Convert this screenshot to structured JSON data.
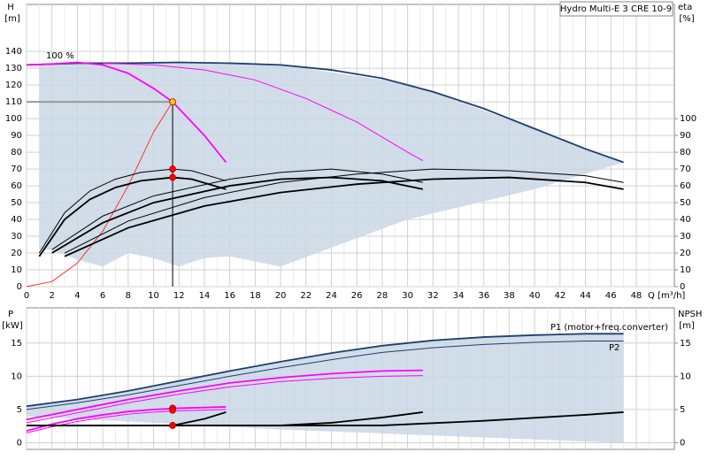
{
  "chart_data": [
    {
      "type": "line",
      "title": "Hydro Multi-E 3 CRE 10-9",
      "ylabel": "H",
      "yunit": "[m]",
      "y2label": "eta",
      "y2unit": "[%]",
      "xlabel": "Q [m³/h]",
      "annotation": "100 %",
      "xlim": [
        0,
        51
      ],
      "ylim": [
        0,
        168
      ],
      "y2lim": [
        0,
        168
      ],
      "xticks": [
        0,
        2,
        4,
        6,
        8,
        10,
        12,
        14,
        16,
        18,
        20,
        22,
        24,
        26,
        28,
        30,
        32,
        34,
        36,
        38,
        40,
        42,
        44,
        46,
        48
      ],
      "yticks": [
        0,
        10,
        20,
        30,
        40,
        50,
        60,
        70,
        80,
        90,
        100,
        110,
        120,
        130,
        140
      ],
      "y2ticks": [
        0,
        10,
        20,
        30,
        40,
        50,
        60,
        70,
        80,
        90,
        100
      ],
      "grid": true,
      "region": {
        "color": "#c9d7e4",
        "x": [
          1,
          2,
          4,
          6,
          8,
          10,
          12,
          14,
          16,
          20,
          30,
          40,
          47
        ],
        "upper": [
          132,
          132.5,
          133,
          133,
          133,
          133,
          133.5,
          133.5,
          133,
          132,
          121,
          94,
          74
        ],
        "lower": [
          22,
          22,
          16,
          12,
          20,
          17,
          12,
          17,
          18,
          12,
          40,
          58,
          74
        ]
      },
      "series": [
        {
          "color": "#1f3f6e",
          "weight": "bold",
          "x": [
            0,
            4,
            8,
            12,
            16,
            20,
            24,
            28,
            32,
            36,
            40,
            44,
            47
          ],
          "values": [
            132,
            133,
            133,
            133.5,
            133,
            132,
            129,
            124,
            116,
            106,
            94,
            82,
            74
          ]
        },
        {
          "color": "#ff00ff",
          "weight": "bold",
          "x": [
            0,
            2,
            4,
            6,
            8,
            10,
            11.5,
            14,
            15.7
          ],
          "values": [
            132,
            132.5,
            133.5,
            132,
            127,
            118,
            110,
            90,
            74
          ]
        },
        {
          "color": "#ff00ff",
          "weight": "thin",
          "x": [
            6,
            10,
            14,
            18,
            22,
            26,
            30,
            31.2
          ],
          "values": [
            133,
            132,
            129,
            123,
            112,
            98,
            80,
            75
          ]
        },
        {
          "color": "#ff3030",
          "weight": "thin",
          "x": [
            0,
            2,
            4,
            6,
            8,
            10,
            11.5
          ],
          "values": [
            0,
            3,
            14,
            33,
            60,
            92,
            110
          ]
        },
        {
          "color": "#000000",
          "weight": "bold",
          "axis": "y2",
          "x": [
            1,
            3,
            5,
            7,
            9,
            11.5,
            13,
            15.7
          ],
          "values": [
            18,
            40,
            52,
            59,
            63,
            65,
            64,
            58
          ]
        },
        {
          "color": "#000000",
          "weight": "thin",
          "axis": "y2",
          "x": [
            1,
            3,
            5,
            7,
            9,
            11.5,
            13,
            15.7
          ],
          "values": [
            20,
            44,
            57,
            64,
            68,
            70,
            69,
            63
          ]
        },
        {
          "color": "#000000",
          "weight": "bold",
          "axis": "y2",
          "x": [
            2,
            6,
            10,
            16,
            20,
            24,
            28,
            31.2
          ],
          "values": [
            20,
            38,
            50,
            60,
            64,
            65,
            63,
            58
          ]
        },
        {
          "color": "#000000",
          "weight": "thin",
          "axis": "y2",
          "x": [
            2,
            6,
            10,
            16,
            20,
            24,
            28,
            31.2
          ],
          "values": [
            22,
            42,
            54,
            64,
            68,
            70,
            67,
            62
          ]
        },
        {
          "color": "#000000",
          "weight": "bold",
          "axis": "y2",
          "x": [
            3,
            8,
            14,
            20,
            26,
            32,
            38,
            44,
            47
          ],
          "values": [
            18,
            35,
            48,
            56,
            61,
            64,
            65,
            62,
            58
          ]
        },
        {
          "color": "#000000",
          "weight": "thin",
          "axis": "y2",
          "x": [
            3,
            8,
            14,
            20,
            26,
            32,
            38,
            44,
            47
          ],
          "values": [
            20,
            39,
            53,
            62,
            67,
            70,
            69,
            66,
            62
          ]
        }
      ],
      "points": [
        {
          "x": 11.5,
          "y": 110,
          "color": "#ffcc00"
        },
        {
          "x": 11.5,
          "y": 70,
          "axis": "y2",
          "color": "#ff0000"
        },
        {
          "x": 11.5,
          "y": 65,
          "axis": "y2",
          "color": "#ff0000"
        }
      ]
    },
    {
      "type": "line",
      "ylabel": "P",
      "yunit": "[kW]",
      "y2label": "NPSH",
      "y2unit": "[m]",
      "annotations": [
        "P1 (motor+freq.converter)",
        "P2"
      ],
      "xlim": [
        0,
        51
      ],
      "ylim": [
        -1,
        20.3
      ],
      "y2lim": [
        -1,
        20.3
      ],
      "yticks": [
        0,
        5,
        10,
        15
      ],
      "y2ticks": [
        0,
        5,
        10,
        15
      ],
      "grid": true,
      "region": {
        "color": "#c9d7e4",
        "x": [
          0,
          4,
          8,
          12,
          16,
          20,
          24,
          28,
          32,
          36,
          40,
          44,
          47
        ],
        "upper": [
          5.5,
          6.5,
          7.8,
          9.3,
          10.8,
          12.2,
          13.5,
          14.6,
          15.4,
          15.9,
          16.2,
          16.4,
          16.4
        ],
        "lower": [
          4,
          3.6,
          3.2,
          2.8,
          2.4,
          2,
          1.7,
          1.4,
          1.1,
          0.8,
          0.5,
          0.2,
          0
        ]
      },
      "series": [
        {
          "color": "#1f3f6e",
          "weight": "bold",
          "x": [
            0,
            4,
            8,
            12,
            16,
            20,
            24,
            28,
            32,
            36,
            40,
            44,
            47
          ],
          "values": [
            5.5,
            6.5,
            7.8,
            9.3,
            10.8,
            12.2,
            13.5,
            14.6,
            15.4,
            15.9,
            16.2,
            16.4,
            16.4
          ]
        },
        {
          "color": "#1f3f6e",
          "weight": "thin",
          "x": [
            0,
            4,
            8,
            12,
            16,
            20,
            24,
            28,
            32,
            36,
            40,
            44,
            47
          ],
          "values": [
            5,
            6,
            7.2,
            8.6,
            10,
            11.3,
            12.5,
            13.6,
            14.3,
            14.8,
            15.1,
            15.3,
            15.3
          ]
        },
        {
          "color": "#ff00ff",
          "weight": "bold",
          "x": [
            0,
            4,
            8,
            12,
            16,
            20,
            24,
            28,
            31.2
          ],
          "values": [
            3.5,
            5,
            6.5,
            7.8,
            9,
            9.8,
            10.4,
            10.8,
            10.9
          ]
        },
        {
          "color": "#ff00ff",
          "weight": "thin",
          "x": [
            0,
            4,
            8,
            12,
            16,
            20,
            24,
            28,
            31.2
          ],
          "values": [
            3,
            4.5,
            6,
            7.3,
            8.4,
            9.2,
            9.7,
            10,
            10.1
          ]
        },
        {
          "color": "#ff00ff",
          "weight": "bold",
          "x": [
            0,
            2,
            4,
            6,
            8,
            10,
            12,
            14,
            15.7
          ],
          "values": [
            1.8,
            2.8,
            3.6,
            4.2,
            4.7,
            5,
            5.2,
            5.3,
            5.4
          ]
        },
        {
          "color": "#ff00ff",
          "weight": "thin",
          "x": [
            0,
            2,
            4,
            6,
            8,
            10,
            12,
            14,
            15.7
          ],
          "values": [
            1.5,
            2.4,
            3.2,
            3.8,
            4.3,
            4.6,
            4.8,
            4.9,
            5
          ]
        },
        {
          "color": "#000000",
          "weight": "bold",
          "axis": "y2",
          "x": [
            0,
            11.5,
            14,
            15.7
          ],
          "values": [
            2.6,
            2.6,
            3.6,
            4.6
          ]
        },
        {
          "color": "#000000",
          "weight": "bold",
          "axis": "y2",
          "x": [
            0,
            20,
            24,
            28,
            31.2
          ],
          "values": [
            2.6,
            2.6,
            3,
            3.8,
            4.6
          ]
        },
        {
          "color": "#000000",
          "weight": "bold",
          "axis": "y2",
          "x": [
            0,
            28,
            36,
            44,
            47
          ],
          "values": [
            2.6,
            2.6,
            3.3,
            4.2,
            4.6
          ]
        }
      ],
      "points": [
        {
          "x": 11.5,
          "y": 5.2,
          "color": "#ff0000"
        },
        {
          "x": 11.5,
          "y": 4.9,
          "color": "#ff0000"
        },
        {
          "x": 11.5,
          "y": 2.6,
          "axis": "y2",
          "color": "#ff0000"
        }
      ]
    }
  ]
}
